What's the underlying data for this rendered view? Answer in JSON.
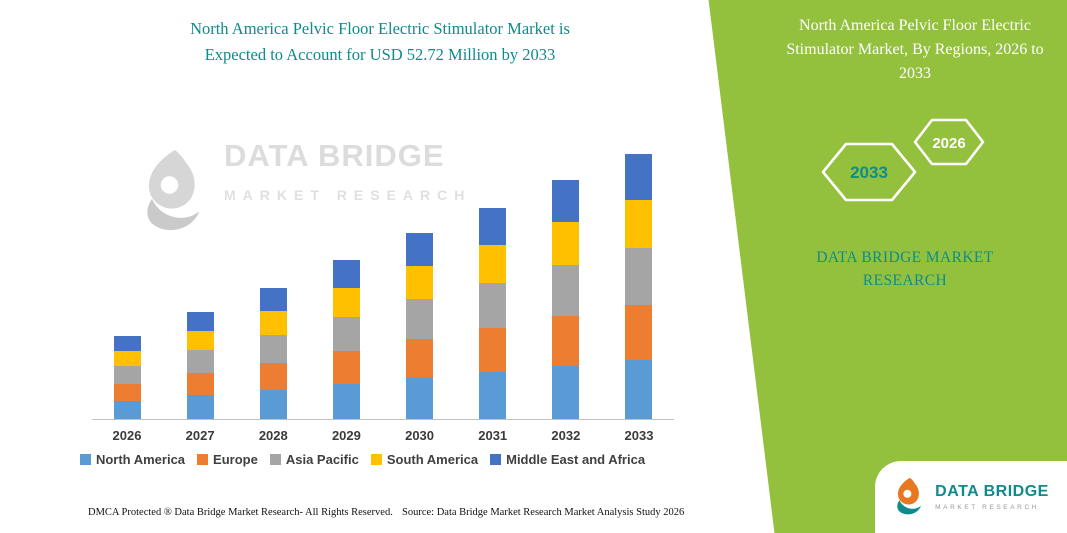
{
  "title": {
    "line1": "North America Pelvic Floor Electric Stimulator Market is",
    "line2": "Expected to Account for USD 52.72 Million by 2033"
  },
  "watermark": {
    "brand": "DATA BRIDGE",
    "sub": "MARKET RESEARCH"
  },
  "chart_data": {
    "type": "bar",
    "stacked": true,
    "title": "North America Pelvic Floor Electric Stimulator Market is Expected to Account for USD 52.72 Million by 2033",
    "unit": "USD Million",
    "highlight_value": "USD 52.72 Million by 2033",
    "categories": [
      "2026",
      "2027",
      "2028",
      "2029",
      "2030",
      "2031",
      "2032",
      "2033"
    ],
    "series": [
      {
        "name": "North America",
        "color": "#5B9BD5",
        "values": [
          3.6,
          4.7,
          5.8,
          7.0,
          8.2,
          9.4,
          10.6,
          11.8
        ]
      },
      {
        "name": "Europe",
        "color": "#ED7D31",
        "values": [
          3.4,
          4.4,
          5.4,
          6.6,
          7.7,
          8.8,
          9.9,
          11.0
        ]
      },
      {
        "name": "Asia Pacific",
        "color": "#A5A5A5",
        "values": [
          3.5,
          4.5,
          5.6,
          6.8,
          8.0,
          9.0,
          10.2,
          11.3
        ]
      },
      {
        "name": "South America",
        "color": "#FFC000",
        "values": [
          3.0,
          3.8,
          4.7,
          5.7,
          6.6,
          7.6,
          8.6,
          9.5
        ]
      },
      {
        "name": "Middle East and Africa",
        "color": "#4472C4",
        "values": [
          2.9,
          3.7,
          4.6,
          5.5,
          6.5,
          7.4,
          8.4,
          9.12
        ]
      }
    ],
    "ylim": [
      0,
      55
    ],
    "grid": false,
    "legend_position": "bottom"
  },
  "footer": {
    "dmca": "DMCA Protected ® Data Bridge Market Research-  All Rights Reserved.",
    "source": "Source: Data Bridge Market Research  Market Analysis Study 2026"
  },
  "panel": {
    "bg": "#93C13D",
    "title": "North America Pelvic Floor Electric Stimulator Market, By Regions, 2026 to 2033",
    "year_back": "2033",
    "year_front": "2026",
    "brand_line1": "DATA BRIDGE MARKET",
    "brand_line2": "RESEARCH"
  },
  "logo_card": {
    "brand": "DATA BRIDGE",
    "sub": "MARKET RESEARCH"
  },
  "colors": {
    "accent_teal": "#0F8B8D",
    "brand_orange": "#E87722",
    "panel_green": "#93C13D"
  }
}
